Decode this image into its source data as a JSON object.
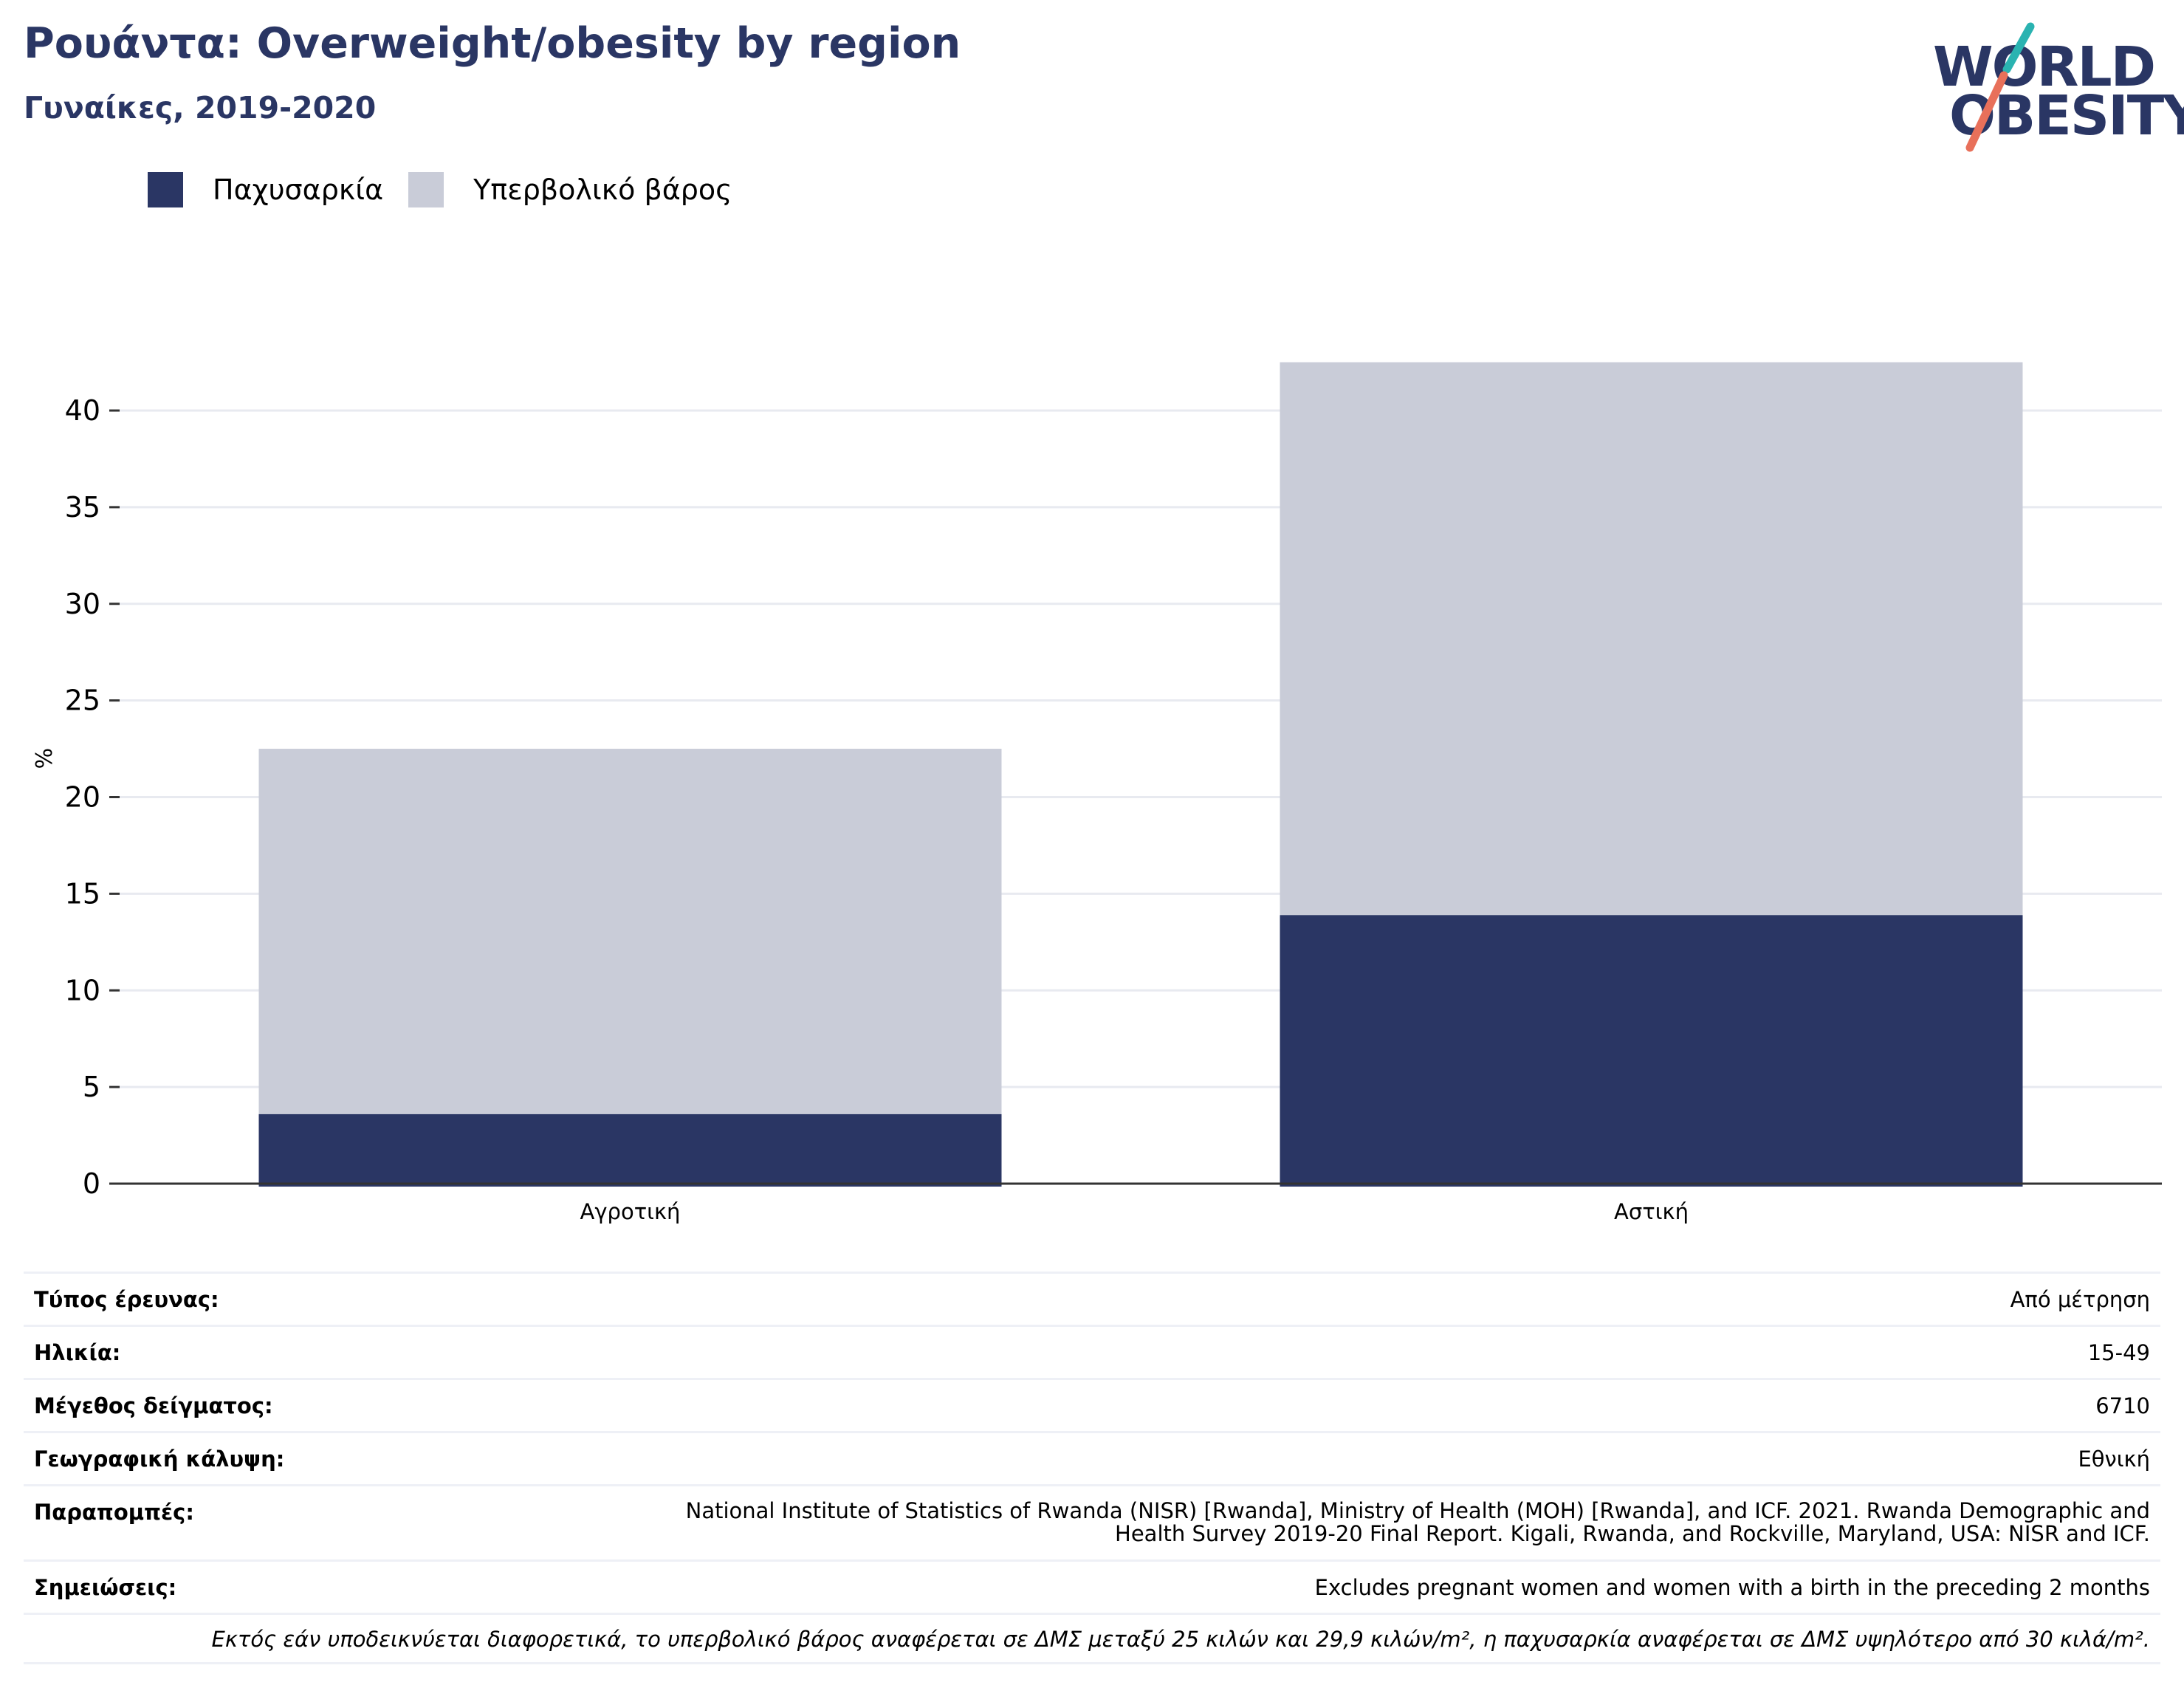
{
  "header": {
    "title": "Ρουάντα: Overweight/obesity by region",
    "subtitle": "Γυναίκες, 2019-2020"
  },
  "logo": {
    "line1": "WORLD",
    "line2": "OBESITY",
    "colors": {
      "text": "#2a3664",
      "slash_top": "#2ab3b1",
      "slash_bottom": "#e8705a"
    }
  },
  "colors": {
    "obesity": "#2a3664",
    "overweight": "#c9ccd8",
    "grid": "#e8eaf0",
    "axis": "#333333"
  },
  "chart_data": {
    "type": "bar",
    "stacked": true,
    "title": "Ρουάντα: Overweight/obesity by region",
    "subtitle": "Γυναίκες, 2019-2020",
    "ylabel": "%",
    "xlabel": "",
    "ylim": [
      0,
      44
    ],
    "yticks": [
      0,
      5,
      10,
      15,
      20,
      25,
      30,
      35,
      40
    ],
    "grid": true,
    "legend_position": "top-left",
    "categories": [
      "Αγροτική",
      "Αστική"
    ],
    "series": [
      {
        "name": "Παχυσαρκία",
        "values": [
          3.6,
          13.9
        ],
        "color": "#2a3664"
      },
      {
        "name": "Υπερβολικό βάρος",
        "values": [
          18.9,
          28.6
        ],
        "color": "#c9ccd8"
      }
    ]
  },
  "meta": {
    "rows": [
      {
        "key": "Τύπος έρευνας:",
        "value": "Από μέτρηση"
      },
      {
        "key": "Ηλικία:",
        "value": "15-49"
      },
      {
        "key": "Μέγεθος δείγματος:",
        "value": "6710"
      },
      {
        "key": "Γεωγραφική κάλυψη:",
        "value": "Εθνική"
      },
      {
        "key": "Παραπομπές:",
        "value": "National Institute of Statistics of Rwanda (NISR) [Rwanda], Ministry of Health (MOH) [Rwanda], and ICF. 2021. Rwanda Demographic and Health Survey 2019-20 Final Report. Kigali, Rwanda, and Rockville, Maryland, USA: NISR and ICF."
      },
      {
        "key": "Σημειώσεις:",
        "value": "Excludes pregnant women and women with a birth in the preceding 2 months"
      }
    ],
    "footnote": "Εκτός εάν υποδεικνύεται διαφορετικά, το υπερβολικό βάρος αναφέρεται σε ΔΜΣ μεταξύ 25 κιλών και 29,9 κιλών/m², η παχυσαρκία αναφέρεται σε ΔΜΣ υψηλότερο από 30 κιλά/m²."
  }
}
